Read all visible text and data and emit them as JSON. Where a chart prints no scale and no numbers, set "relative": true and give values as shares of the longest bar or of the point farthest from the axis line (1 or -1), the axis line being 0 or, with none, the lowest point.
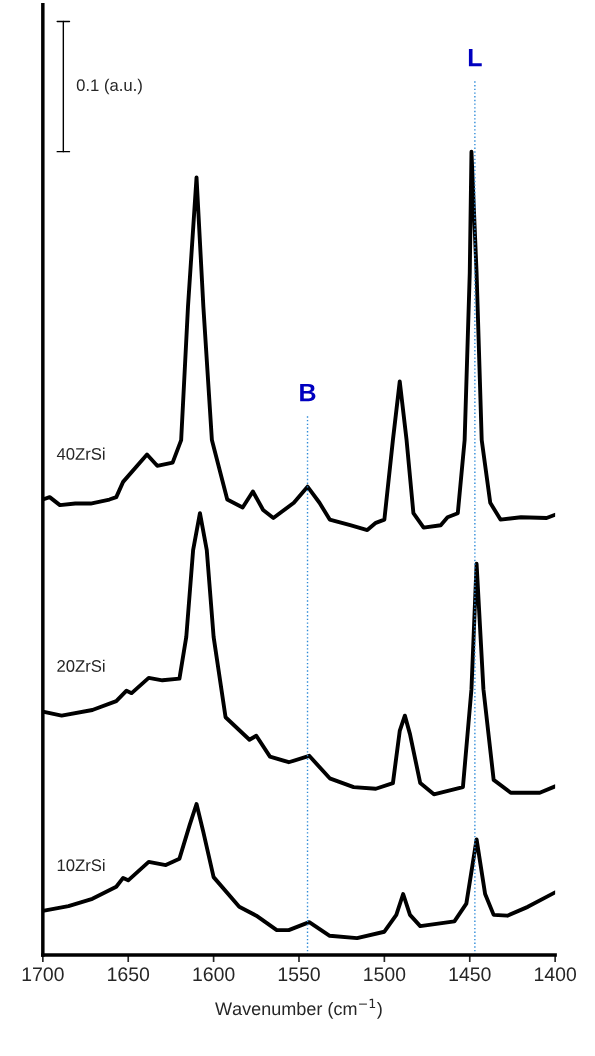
{
  "chart_data": {
    "type": "line",
    "relative": true,
    "xlabel": "Wavenumber (cm$^{−1}$)",
    "xlim": [
      1700,
      1400
    ],
    "xticks": [
      1700,
      1650,
      1600,
      1550,
      1500,
      1450,
      1400
    ],
    "grid": false,
    "legend": false,
    "marker": "none",
    "line_style": "solid",
    "annotations": [
      "0.1 (a.u.)"
    ],
    "ref_lines": [
      {
        "axis": "x",
        "value": 1545,
        "label": "B",
        "color": "#2e8bd8",
        "line_style": "dotted"
      },
      {
        "axis": "x",
        "value": 1447,
        "label": "L",
        "color": "#2e8bd8",
        "line_style": "dotted"
      }
    ],
    "series": [
      {
        "name": "40ZrSi",
        "color": "#000000",
        "x": [
          1700,
          1696,
          1690,
          1681,
          1672,
          1661,
          1657,
          1653,
          1639,
          1633,
          1624,
          1619,
          1615,
          1610,
          1606,
          1601,
          1592,
          1583,
          1577,
          1571,
          1565,
          1553,
          1545,
          1538,
          1532,
          1520,
          1510,
          1505,
          1500,
          1495,
          1491,
          1487,
          1483,
          1477,
          1467,
          1463,
          1457,
          1453,
          1450,
          1449,
          1446,
          1443,
          1438,
          1432,
          1420,
          1405,
          1400
        ],
        "values": [
          0.567,
          0.57,
          0.56,
          0.562,
          0.562,
          0.567,
          0.57,
          0.589,
          0.623,
          0.609,
          0.613,
          0.641,
          0.807,
          0.968,
          0.807,
          0.641,
          0.567,
          0.557,
          0.577,
          0.554,
          0.544,
          0.563,
          0.583,
          0.563,
          0.542,
          0.535,
          0.529,
          0.538,
          0.542,
          0.641,
          0.714,
          0.641,
          0.55,
          0.532,
          0.535,
          0.545,
          0.55,
          0.641,
          0.849,
          1.0,
          0.849,
          0.641,
          0.563,
          0.542,
          0.545,
          0.544,
          0.548
        ]
      },
      {
        "name": "20ZrSi",
        "color": "#000000",
        "x": [
          1700,
          1689,
          1671,
          1657,
          1651,
          1648,
          1638,
          1630,
          1620,
          1616,
          1612,
          1608,
          1604,
          1600,
          1593,
          1579,
          1575,
          1567,
          1556,
          1544,
          1532,
          1518,
          1505,
          1495,
          1491,
          1488,
          1485,
          1479,
          1471,
          1454,
          1449,
          1446,
          1442,
          1436,
          1426,
          1409,
          1400
        ],
        "values": [
          0.303,
          0.298,
          0.305,
          0.316,
          0.329,
          0.326,
          0.345,
          0.342,
          0.344,
          0.396,
          0.504,
          0.55,
          0.504,
          0.396,
          0.296,
          0.268,
          0.273,
          0.247,
          0.24,
          0.248,
          0.22,
          0.209,
          0.207,
          0.214,
          0.279,
          0.298,
          0.275,
          0.214,
          0.2,
          0.209,
          0.331,
          0.487,
          0.331,
          0.218,
          0.202,
          0.202,
          0.21
        ]
      },
      {
        "name": "10ZrSi",
        "color": "#000000",
        "x": [
          1700,
          1685,
          1671,
          1657,
          1653,
          1650,
          1638,
          1628,
          1620,
          1614,
          1610,
          1606,
          1600,
          1585,
          1575,
          1563,
          1556,
          1544,
          1532,
          1516,
          1500,
          1493,
          1489,
          1485,
          1479,
          1459,
          1452,
          1446,
          1441,
          1436,
          1428,
          1416,
          1400
        ],
        "values": [
          0.055,
          0.061,
          0.07,
          0.085,
          0.096,
          0.093,
          0.116,
          0.112,
          0.12,
          0.162,
          0.188,
          0.153,
          0.097,
          0.06,
          0.049,
          0.031,
          0.031,
          0.041,
          0.024,
          0.021,
          0.029,
          0.05,
          0.076,
          0.05,
          0.036,
          0.042,
          0.064,
          0.144,
          0.076,
          0.05,
          0.049,
          0.06,
          0.078
        ]
      }
    ]
  }
}
